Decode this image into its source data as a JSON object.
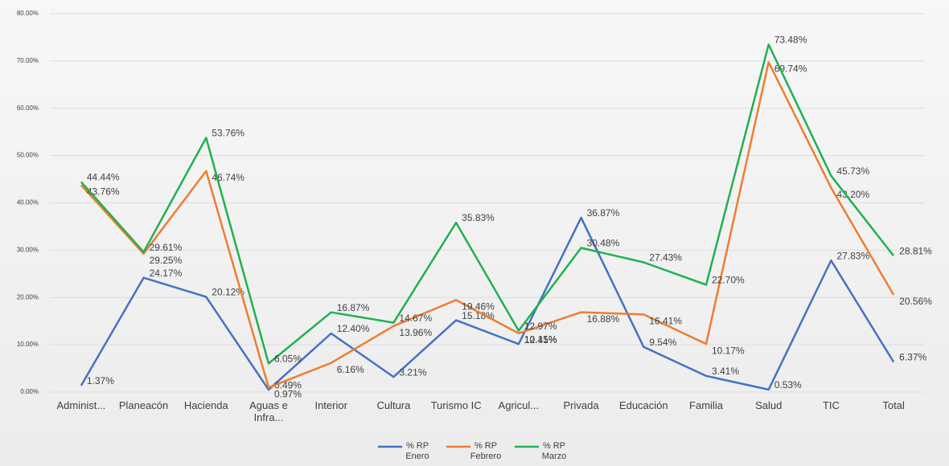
{
  "chart_data": {
    "type": "line",
    "categories": [
      "Administ...",
      "Planeacón",
      "Hacienda",
      "Aguas e Infra...",
      "Interior",
      "Cultura",
      "Turismo IC",
      "Agricul...",
      "Privada",
      "Educación",
      "Familia",
      "Salud",
      "TIC",
      "Total"
    ],
    "series": [
      {
        "name": "% RP Enero",
        "color": "#4472c4",
        "values": [
          1.37,
          24.17,
          20.12,
          0.49,
          12.4,
          3.21,
          15.18,
          10.15,
          36.87,
          9.54,
          3.41,
          0.53,
          27.83,
          6.37
        ],
        "value_labels": [
          "1.37%",
          "24.17%",
          "20.12%",
          "0.49%",
          "12.40%",
          "3.21%",
          "15.18%",
          "10.15%",
          "36.87%",
          "9.54%",
          "3.41%",
          "0.53%",
          "27.83%",
          "6.37%"
        ]
      },
      {
        "name": "% RP Febrero",
        "color": "#ed7d31",
        "values": [
          43.76,
          29.25,
          46.74,
          0.97,
          6.16,
          13.96,
          19.46,
          12.41,
          16.88,
          16.41,
          10.17,
          69.74,
          43.2,
          20.56
        ],
        "value_labels": [
          "43.76%",
          "29.25%",
          "46.74%",
          "0.97%",
          "6.16%",
          "13.96%",
          "19.46%",
          "12.41%",
          "16.88%",
          "16.41%",
          "10.17%",
          "69.74%",
          "43.20%",
          "20.56%"
        ]
      },
      {
        "name": "% RP Marzo",
        "color": "#1fb14f",
        "values": [
          44.44,
          29.61,
          53.76,
          6.05,
          16.87,
          14.67,
          35.83,
          12.97,
          30.48,
          27.43,
          22.7,
          73.48,
          45.73,
          28.81
        ],
        "value_labels": [
          "44.44%",
          "29.61%",
          "53.76%",
          "6.05%",
          "16.87%",
          "14.67%",
          "35.83%",
          "12.97%",
          "30.48%",
          "27.43%",
          "22.70%",
          "73.48%",
          "45.73%",
          "28.81%"
        ]
      }
    ],
    "ylim": [
      0,
      80
    ],
    "yticks": [
      {
        "value": 0,
        "label": "0.00%"
      },
      {
        "value": 10,
        "label": "10.00%"
      },
      {
        "value": 20,
        "label": "20.00%"
      },
      {
        "value": 30,
        "label": "30.00%"
      },
      {
        "value": 40,
        "label": "40.00%"
      },
      {
        "value": 50,
        "label": "50.00%"
      },
      {
        "value": 60,
        "label": "60.00%"
      },
      {
        "value": 70,
        "label": "70.00%"
      },
      {
        "value": 80,
        "label": "80.00%"
      }
    ],
    "grid": true,
    "legend": "bottom"
  }
}
